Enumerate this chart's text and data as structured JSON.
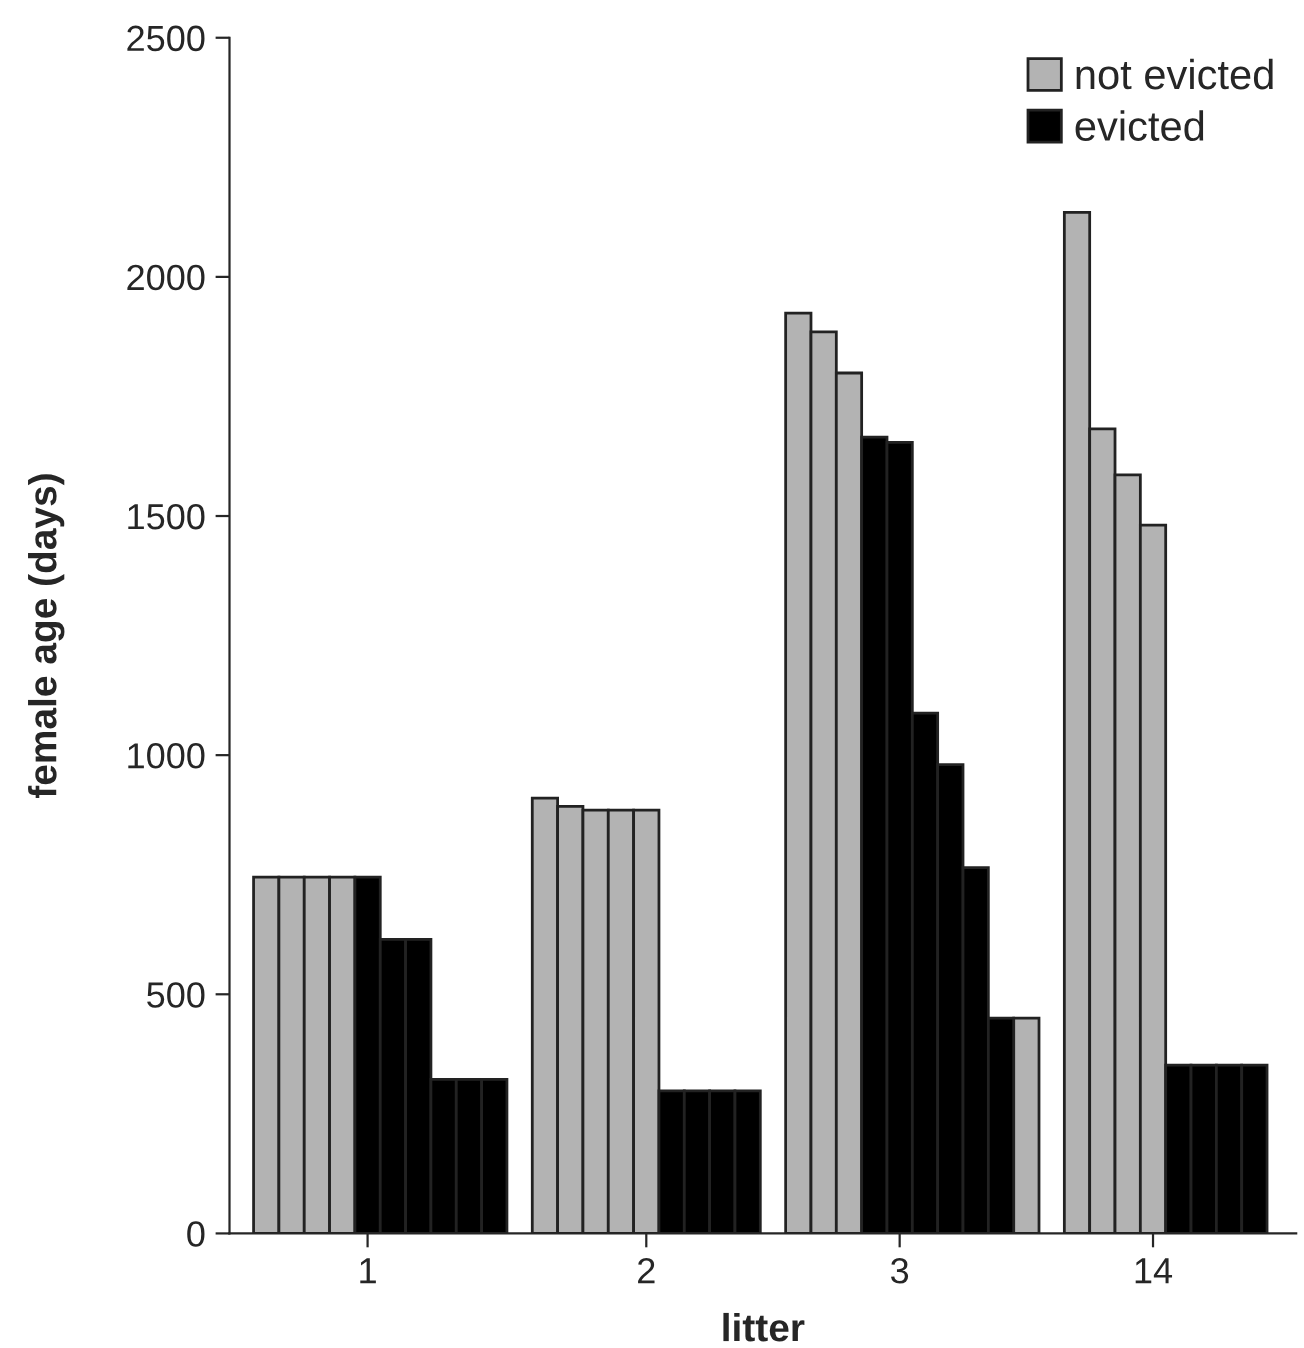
{
  "chart_data": {
    "type": "bar",
    "xlabel": "litter",
    "ylabel": "female age (days)",
    "categories": [
      null,
      null,
      null,
      null,
      "1",
      null,
      null,
      null,
      null,
      null,
      null,
      null,
      null,
      null,
      null,
      "2",
      null,
      null,
      null,
      null,
      null,
      null,
      null,
      null,
      null,
      "3",
      null,
      null,
      null,
      null,
      null,
      null,
      null,
      null,
      null,
      "14",
      null,
      null,
      null,
      null
    ],
    "series": [
      {
        "name": "not evicted",
        "color": "#b3b3b3",
        "values": [
          745,
          745,
          745,
          745,
          null,
          null,
          null,
          null,
          null,
          null,
          null,
          910,
          893,
          885,
          885,
          885,
          null,
          null,
          null,
          null,
          null,
          1924,
          1885,
          1799,
          null,
          null,
          null,
          null,
          null,
          null,
          450,
          null,
          2135,
          1682,
          1586,
          1481,
          null,
          null,
          null,
          null
        ]
      },
      {
        "name": "evicted",
        "color": "#000000",
        "values": [
          null,
          null,
          null,
          null,
          745,
          615,
          615,
          322,
          322,
          322,
          null,
          null,
          null,
          null,
          null,
          null,
          298,
          298,
          298,
          298,
          null,
          null,
          null,
          null,
          1665,
          1654,
          1088,
          980,
          765,
          450,
          null,
          null,
          null,
          null,
          null,
          null,
          352,
          352,
          352,
          352
        ]
      }
    ],
    "ylim": [
      0,
      2500
    ],
    "yticks": [
      0,
      500,
      1000,
      1500,
      2000,
      2500
    ],
    "legend": "top right",
    "grid": false
  }
}
